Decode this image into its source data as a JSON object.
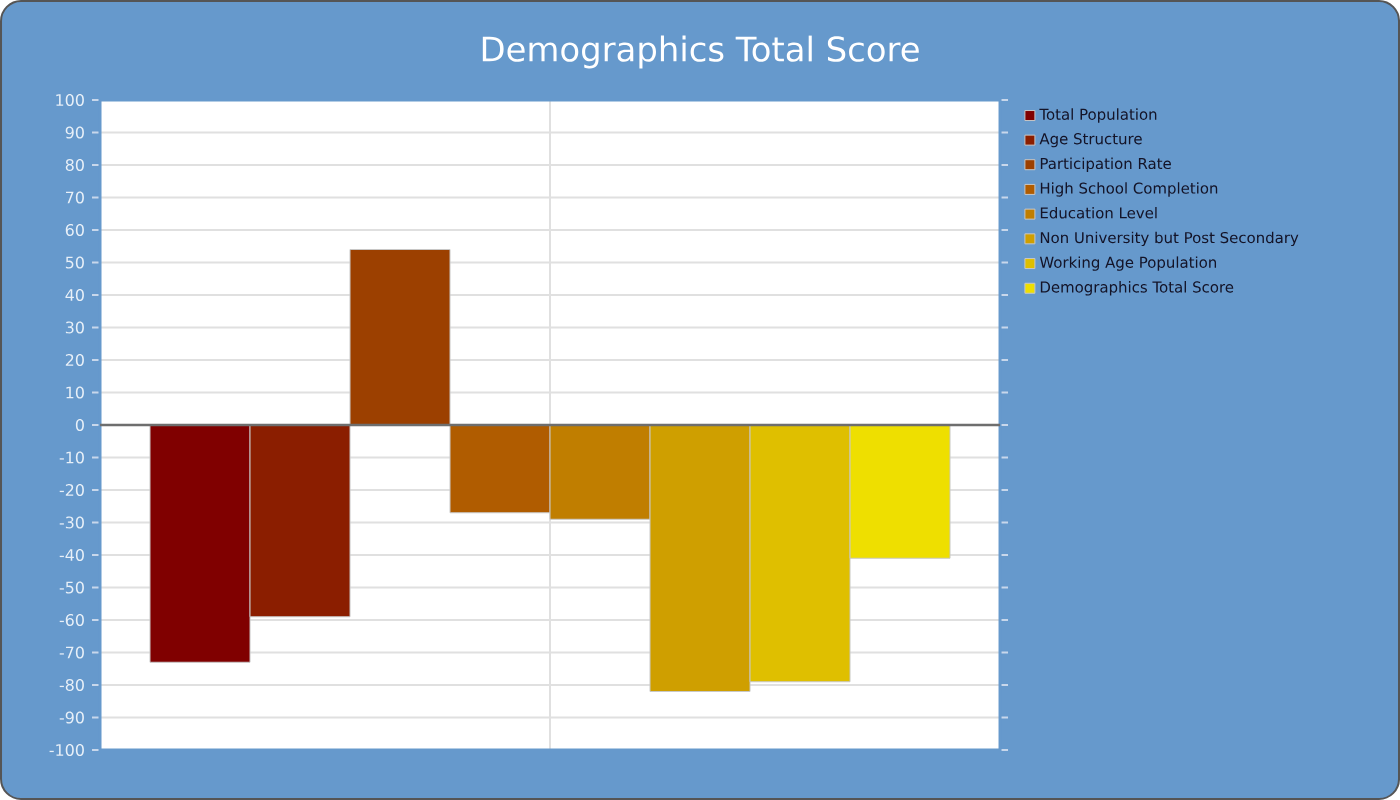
{
  "chart_data": {
    "type": "bar",
    "title": "Demographics Total Score",
    "categories": [
      null
    ],
    "series": [
      {
        "name": "Total Population",
        "color": "#800000",
        "values": [
          -73
        ]
      },
      {
        "name": "Age Structure",
        "color": "#8b1e00",
        "values": [
          -59
        ]
      },
      {
        "name": "Participation Rate",
        "color": "#9c4000",
        "values": [
          54
        ]
      },
      {
        "name": "High School Completion",
        "color": "#b05c00",
        "values": [
          -27
        ]
      },
      {
        "name": "Education Level",
        "color": "#c07e00",
        "values": [
          -29
        ]
      },
      {
        "name": "Non University but Post Secondary",
        "color": "#cf9f00",
        "values": [
          -82
        ]
      },
      {
        "name": "Working Age Population",
        "color": "#dfbf00",
        "values": [
          -79
        ]
      },
      {
        "name": "Demographics Total Score",
        "color": "#eedf00",
        "values": [
          -41
        ]
      }
    ],
    "ylim": [
      -100,
      100
    ],
    "yticks": [
      -100,
      -90,
      -80,
      -70,
      -60,
      -50,
      -40,
      -30,
      -20,
      -10,
      0,
      10,
      20,
      30,
      40,
      50,
      60,
      70,
      80,
      90,
      100
    ],
    "grid": true,
    "legend": "right"
  }
}
